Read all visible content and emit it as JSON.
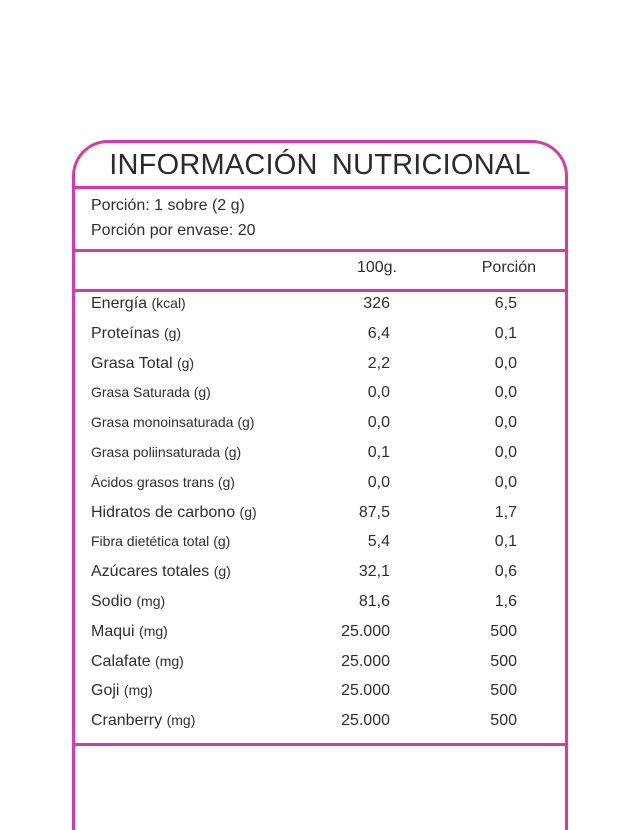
{
  "title": "INFORMACIÓN  NUTRICIONAL",
  "serving": {
    "portion": "Porción: 1 sobre (2 g)",
    "per_package": "Porción por envase: 20"
  },
  "columns": {
    "per100": "100g.",
    "portion": "Porción"
  },
  "colors": {
    "accent": "#d63aa6"
  },
  "rows": [
    {
      "name": "Energía",
      "unit": "(kcal)",
      "v100": "326",
      "vpor": "6,5",
      "size": "big"
    },
    {
      "name": "Proteínas",
      "unit": "(g)",
      "v100": "6,4",
      "vpor": "0,1",
      "size": "big"
    },
    {
      "name": "Grasa Total",
      "unit": "(g)",
      "v100": "2,2",
      "vpor": "0,0",
      "size": "big"
    },
    {
      "name": "Grasa Saturada",
      "unit": "(g)",
      "v100": "0,0",
      "vpor": "0,0",
      "size": "small"
    },
    {
      "name": "Grasa monoinsaturada",
      "unit": "(g)",
      "v100": "0,0",
      "vpor": "0,0",
      "size": "small"
    },
    {
      "name": "Grasa poliinsaturada",
      "unit": "(g)",
      "v100": "0,1",
      "vpor": "0,0",
      "size": "small"
    },
    {
      "name": "Ácidos grasos trans",
      "unit": "(g)",
      "v100": "0,0",
      "vpor": "0,0",
      "size": "small"
    },
    {
      "name": "Hidratos de carbono",
      "unit": "(g)",
      "v100": "87,5",
      "vpor": "1,7",
      "size": "big"
    },
    {
      "name": "Fibra dietética total",
      "unit": "(g)",
      "v100": "5,4",
      "vpor": "0,1",
      "size": "small"
    },
    {
      "name": "Azúcares totales",
      "unit": "(g)",
      "v100": "32,1",
      "vpor": "0,6",
      "size": "big"
    },
    {
      "name": "Sodio",
      "unit": "(mg)",
      "v100": "81,6",
      "vpor": "1,6",
      "size": "big"
    },
    {
      "name": "Maqui",
      "unit": "(mg)",
      "v100": "25.000",
      "vpor": "500",
      "size": "big"
    },
    {
      "name": "Calafate",
      "unit": "(mg)",
      "v100": "25.000",
      "vpor": "500",
      "size": "big"
    },
    {
      "name": "Goji",
      "unit": "(mg)",
      "v100": "25.000",
      "vpor": "500",
      "size": "big"
    },
    {
      "name": "Cranberry",
      "unit": "(mg)",
      "v100": "25.000",
      "vpor": "500",
      "size": "big"
    }
  ]
}
